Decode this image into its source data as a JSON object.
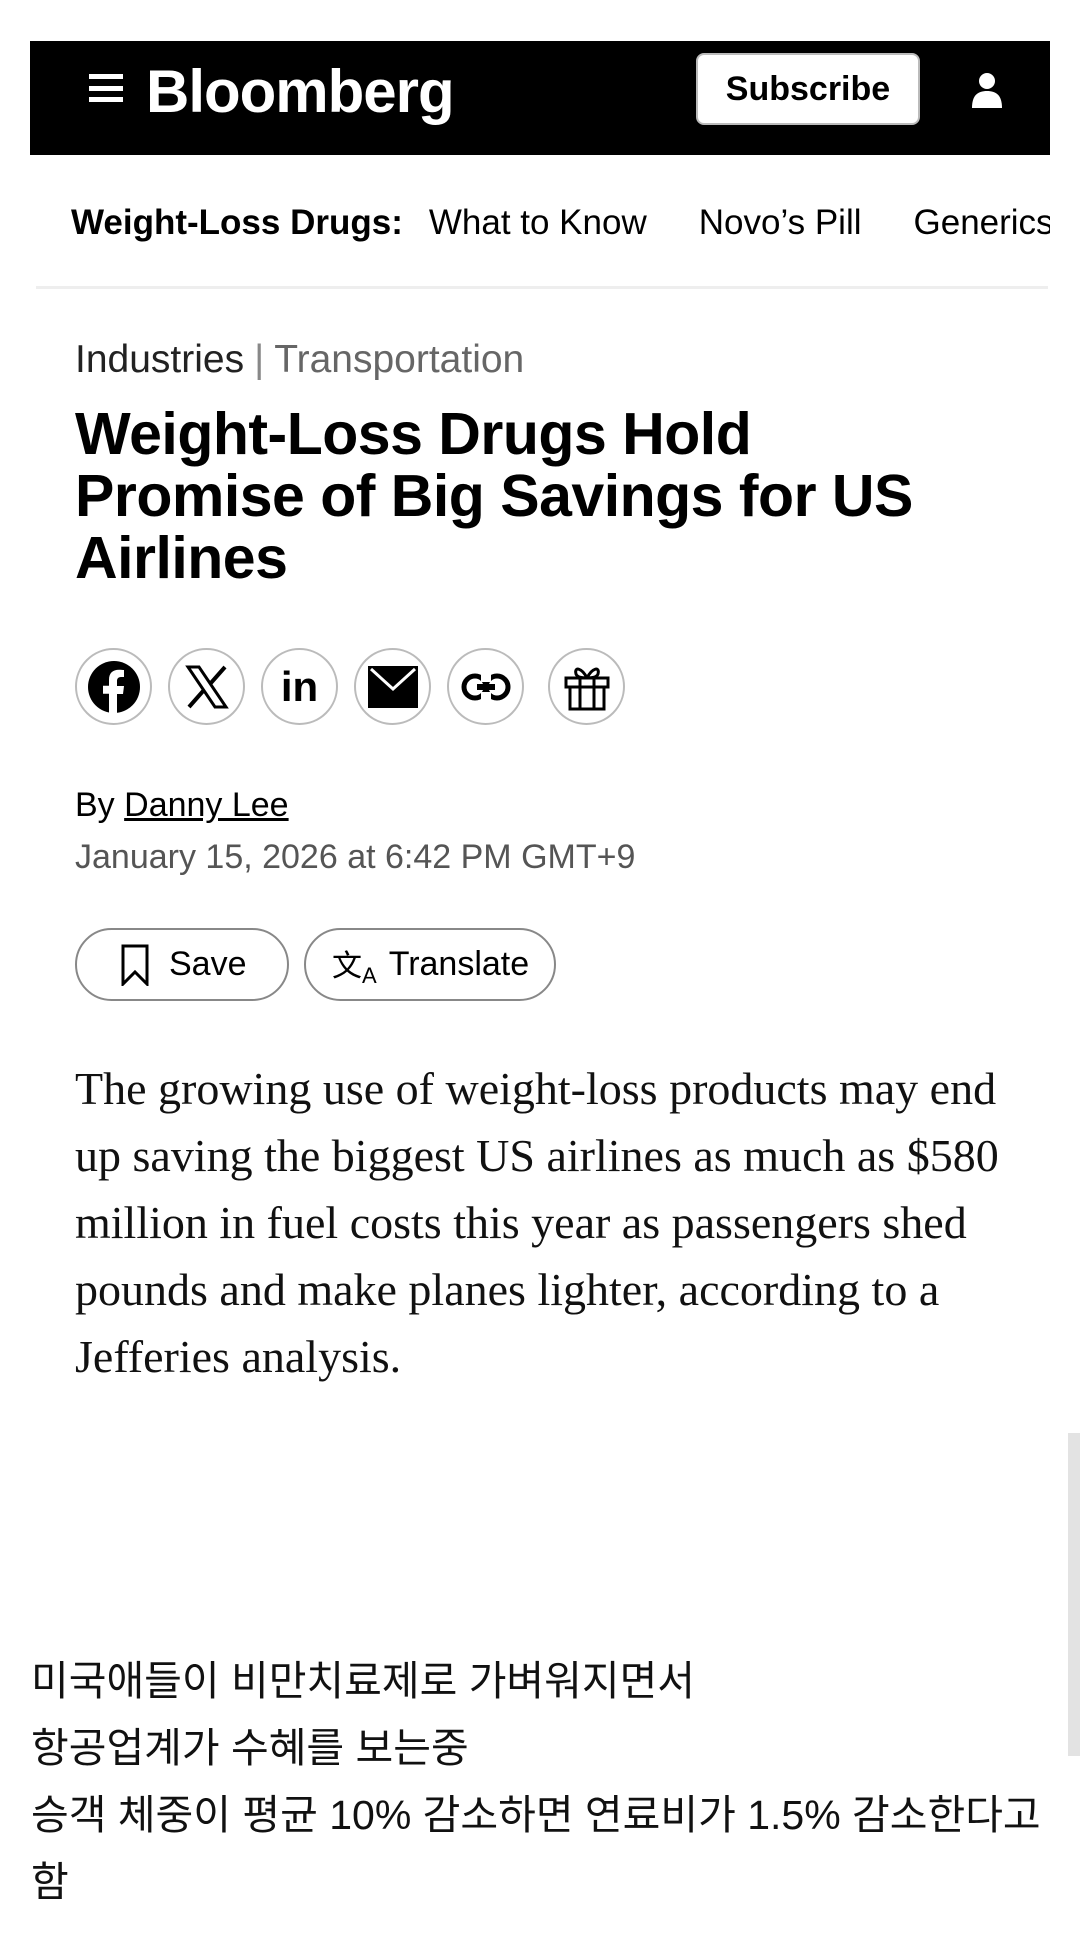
{
  "header": {
    "logo": "Bloomberg",
    "subscribe_label": "Subscribe",
    "icons": [
      "menu-icon",
      "user-icon"
    ]
  },
  "topic_nav": {
    "label": "Weight-Loss Drugs:",
    "items": [
      "What to Know",
      "Novo’s Pill",
      "Generics"
    ]
  },
  "breadcrumb": {
    "section": "Industries",
    "separator": "|",
    "subsection": "Transportation"
  },
  "article": {
    "headline": "Weight-Loss Drugs Hold Promise of Big Savings for US Airlines",
    "share_icons": [
      "facebook-icon",
      "x-icon",
      "linkedin-icon",
      "email-icon",
      "link-icon",
      "gift-icon"
    ],
    "byline_prefix": "By",
    "author": "Danny Lee",
    "date": "January 15, 2026 at 6:42 PM GMT+9",
    "save_label": "Save",
    "translate_label": "Translate",
    "body": "The growing use of weight-loss products may end up saving the biggest US airlines as much as $580 million in fuel costs this year as passengers shed pounds and make planes lighter, according to a Jefferies analysis."
  },
  "caption": {
    "lines": [
      "미국애들이 비만치료제로 가벼워지면서",
      "항공업계가 수혜를 보는중",
      "승객 체중이 평균 10% 감소하면 연료비가 1.5% 감소한다고",
      "함"
    ]
  }
}
